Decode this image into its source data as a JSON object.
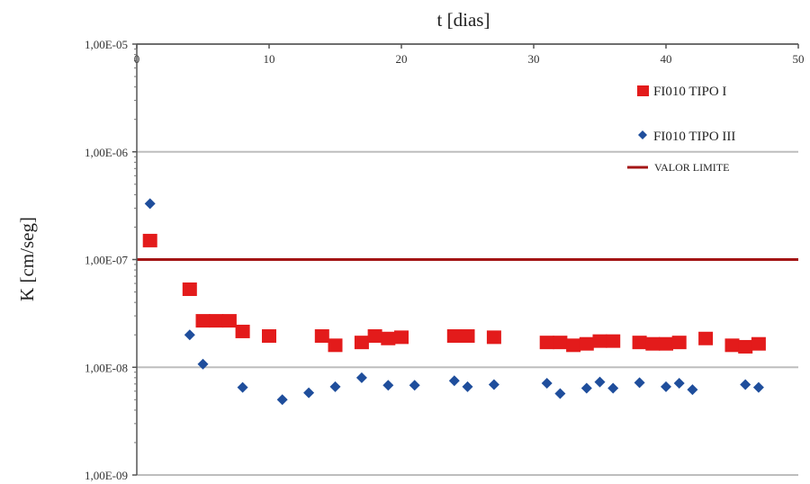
{
  "chart_data": {
    "type": "scatter",
    "title": "",
    "xlabel": "t [dias]",
    "ylabel": "K [cm/seg]",
    "xlim": [
      0,
      50
    ],
    "ylim": [
      1e-09,
      1e-05
    ],
    "yscale": "log",
    "x_ticks": [
      0,
      10,
      20,
      30,
      40,
      50
    ],
    "y_ticks": [
      1e-05,
      1e-06,
      1e-07,
      1e-08,
      1e-09
    ],
    "y_tick_labels": [
      "1,00E-05",
      "1,00E-06",
      "1,00E-07",
      "1,00E-08",
      "1,00E-09"
    ],
    "x_axis_position": "top",
    "grid": "horizontal",
    "legend_position": "top-right",
    "series": [
      {
        "name": "FI010 TIPO I",
        "marker": "square",
        "color": "#e31b1b",
        "points": [
          [
            1,
            1.5e-07
          ],
          [
            4,
            5.3e-08
          ],
          [
            5,
            2.7e-08
          ],
          [
            6,
            2.7e-08
          ],
          [
            7,
            2.7e-08
          ],
          [
            8,
            2.15e-08
          ],
          [
            10,
            1.95e-08
          ],
          [
            14,
            1.95e-08
          ],
          [
            15,
            1.6e-08
          ],
          [
            17,
            1.7e-08
          ],
          [
            18,
            1.95e-08
          ],
          [
            19,
            1.85e-08
          ],
          [
            20,
            1.9e-08
          ],
          [
            24,
            1.95e-08
          ],
          [
            25,
            1.95e-08
          ],
          [
            27,
            1.9e-08
          ],
          [
            31,
            1.7e-08
          ],
          [
            32,
            1.7e-08
          ],
          [
            33,
            1.6e-08
          ],
          [
            34,
            1.65e-08
          ],
          [
            35,
            1.75e-08
          ],
          [
            36,
            1.75e-08
          ],
          [
            38,
            1.7e-08
          ],
          [
            39,
            1.65e-08
          ],
          [
            40,
            1.65e-08
          ],
          [
            41,
            1.7e-08
          ],
          [
            43,
            1.85e-08
          ],
          [
            45,
            1.6e-08
          ],
          [
            46,
            1.55e-08
          ],
          [
            47,
            1.65e-08
          ]
        ]
      },
      {
        "name": "FI010 TIPO III",
        "marker": "diamond",
        "color": "#1f4e9c",
        "points": [
          [
            1,
            3.3e-07
          ],
          [
            4,
            2e-08
          ],
          [
            5,
            1.07e-08
          ],
          [
            8,
            6.5e-09
          ],
          [
            11,
            5e-09
          ],
          [
            13,
            5.8e-09
          ],
          [
            15,
            6.6e-09
          ],
          [
            17,
            8e-09
          ],
          [
            19,
            6.8e-09
          ],
          [
            21,
            6.8e-09
          ],
          [
            24,
            7.5e-09
          ],
          [
            25,
            6.6e-09
          ],
          [
            27,
            6.9e-09
          ],
          [
            31,
            7.1e-09
          ],
          [
            32,
            5.7e-09
          ],
          [
            34,
            6.4e-09
          ],
          [
            35,
            7.3e-09
          ],
          [
            36,
            6.4e-09
          ],
          [
            38,
            7.2e-09
          ],
          [
            40,
            6.6e-09
          ],
          [
            41,
            7.1e-09
          ],
          [
            42,
            6.2e-09
          ],
          [
            46,
            6.9e-09
          ],
          [
            47,
            6.5e-09
          ]
        ]
      }
    ],
    "reference_line": {
      "name": "VALOR LIMITE",
      "y": 1e-07,
      "color": "#a31515"
    }
  }
}
